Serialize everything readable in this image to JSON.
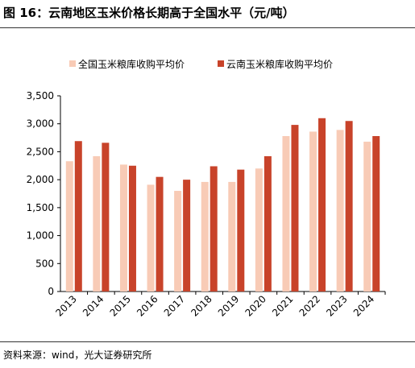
{
  "figure": {
    "title": "图 16：云南地区玉米价格长期高于全国水平（元/吨）",
    "source": "资料来源：wind，光大证券研究所"
  },
  "colors": {
    "national": "#F8CBB6",
    "yunnan": "#C8432A",
    "axis": "#000000",
    "rule": "#333333"
  },
  "chart_data": {
    "type": "bar",
    "title": "",
    "xlabel": "",
    "ylabel": "",
    "categories": [
      "2013",
      "2014",
      "2015",
      "2016",
      "2017",
      "2018",
      "2019",
      "2020",
      "2021",
      "2022",
      "2023",
      "2024"
    ],
    "series": [
      {
        "name": "全国玉米粮库收购平均价",
        "values": [
          2330,
          2420,
          2270,
          1910,
          1800,
          1960,
          1960,
          2200,
          2780,
          2860,
          2890,
          2680
        ]
      },
      {
        "name": "云南玉米粮库收购平均价",
        "values": [
          2690,
          2660,
          2250,
          2050,
          2000,
          2240,
          2180,
          2420,
          2980,
          3100,
          3050,
          2780
        ]
      }
    ],
    "ylim": [
      0,
      3500
    ],
    "yticks": [
      "0",
      "500",
      "1,000",
      "1,500",
      "2,000",
      "2,500",
      "3,000",
      "3,500"
    ],
    "grid": false,
    "legend_position": "top"
  }
}
